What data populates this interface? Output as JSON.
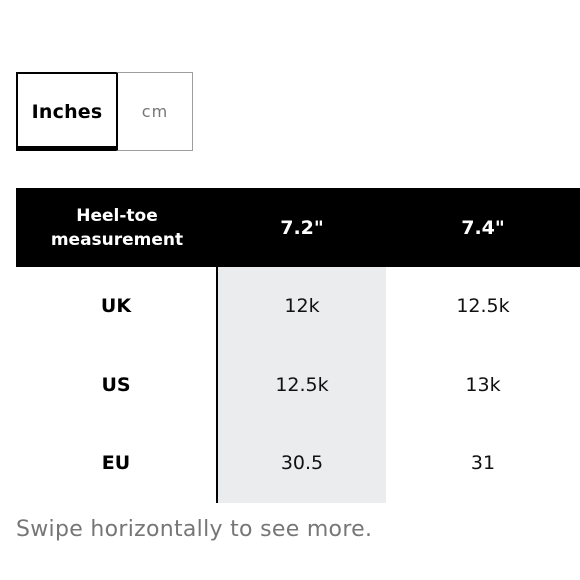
{
  "unit_toggle": {
    "options": [
      {
        "label": "Inches",
        "selected": true
      },
      {
        "label": "cm",
        "selected": false
      }
    ]
  },
  "size_table": {
    "header_label": "Heel-toe measurement",
    "sizes": [
      "7.2\"",
      "7.4\""
    ],
    "rows": [
      {
        "label": "UK",
        "values": [
          "12k",
          "12.5k"
        ]
      },
      {
        "label": "US",
        "values": [
          "12.5k",
          "13k"
        ]
      },
      {
        "label": "EU",
        "values": [
          "30.5",
          "31"
        ]
      }
    ]
  },
  "swipe_hint": "Swipe horizontally to see more.",
  "colors": {
    "header_bg": "#000000",
    "highlight_column": "#ebeced",
    "muted_text": "#767676"
  }
}
